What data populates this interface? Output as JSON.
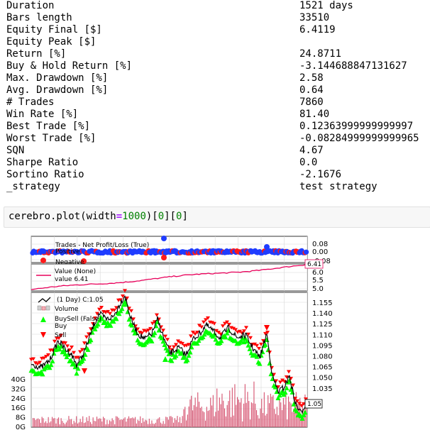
{
  "stats": [
    {
      "key": "Duration",
      "value": "1521 days"
    },
    {
      "key": "Bars length",
      "value": "33510"
    },
    {
      "key": "Equity Final [$]",
      "value": "6.4119"
    },
    {
      "key": "Equity Peak [$]",
      "value": ""
    },
    {
      "key": "Return [%]",
      "value": "24.8711"
    },
    {
      "key": "Buy & Hold Return [%]",
      "value": "-3.144688847131627"
    },
    {
      "key": "Max. Drawdown [%]",
      "value": "2.58"
    },
    {
      "key": "Avg. Drawdown [%]",
      "value": "0.64"
    },
    {
      "key": "# Trades",
      "value": "7860"
    },
    {
      "key": "Win Rate [%]",
      "value": "81.40"
    },
    {
      "key": "Best Trade [%]",
      "value": "0.12363999999999997"
    },
    {
      "key": "Worst Trade [%]",
      "value": "-0.08284999999999965"
    },
    {
      "key": "SQN",
      "value": "4.67"
    },
    {
      "key": "Sharpe Ratio",
      "value": "0.0"
    },
    {
      "key": "Sortino Ratio",
      "value": "-2.1676"
    },
    {
      "key": "_strategy",
      "value": "test strategy"
    }
  ],
  "code_cell": {
    "fn": "cerebro.plot(width",
    "op": "=",
    "num1": "1000",
    "mid1": ")[",
    "num2": "0",
    "mid2": "][",
    "num3": "0",
    "end": "]"
  },
  "plot": {
    "colors": {
      "positive": "#1f3cff",
      "negative": "#ff1a1a",
      "value_line": "#e8005a",
      "close": "#000000",
      "buy": "#00ff00",
      "sell": "#ff0000",
      "volume": "#d6506e"
    },
    "trades_panel": {
      "legend_title": "Trades - Net Profit/Loss (True)",
      "legend_positive": "Positive",
      "legend_negative": "Negative",
      "ticks": [
        "0.08",
        "0.00",
        "-0.08"
      ]
    },
    "value_panel": {
      "legend_title": "Value (None)",
      "legend_value": "value 6.41",
      "last_label": "6.41",
      "ticks": [
        "6.0",
        "5.5",
        "5.0"
      ]
    },
    "price_panel": {
      "legend_close": "(1 Day) C:1.05",
      "legend_volume": "Volume",
      "legend_buysell": "BuySell (False)",
      "legend_buy": "Buy",
      "legend_sell": "Sell",
      "last_label": "1.05",
      "price_ticks": [
        "1.155",
        "1.140",
        "1.125",
        "1.110",
        "1.095",
        "1.080",
        "1.065",
        "1.050",
        "1.035"
      ],
      "volume_ticks": [
        "40G",
        "32G",
        "24G",
        "16G",
        "8G",
        "0G"
      ]
    }
  }
}
